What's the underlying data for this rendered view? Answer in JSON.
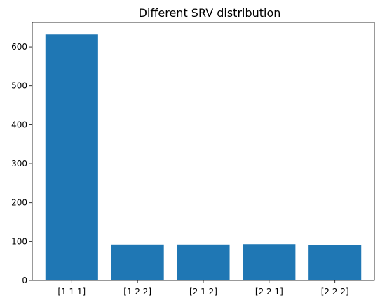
{
  "chart_data": {
    "type": "bar",
    "title": "Different SRV distribution",
    "xlabel": "",
    "ylabel": "",
    "categories": [
      "[1 1 1]",
      "[1 2 2]",
      "[2 1 2]",
      "[2 2 1]",
      "[2 2 2]"
    ],
    "values": [
      632,
      92,
      92,
      93,
      90
    ],
    "ylim": [
      0,
      663
    ],
    "yticks": [
      0,
      100,
      200,
      300,
      400,
      500,
      600
    ],
    "grid": false,
    "legend": "none",
    "bar_color": "#1f77b4",
    "axis_color": "#000000"
  }
}
